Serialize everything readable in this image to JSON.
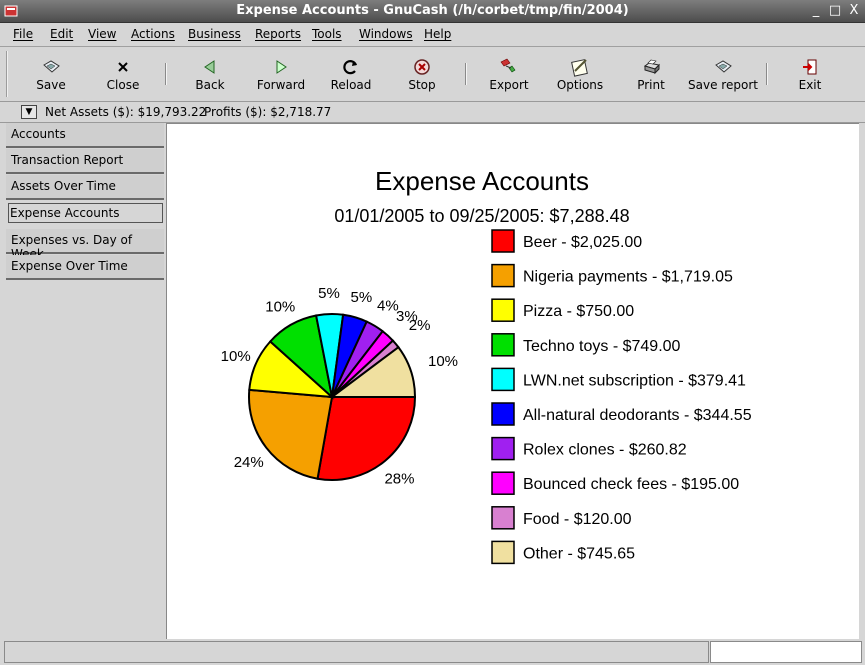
{
  "window": {
    "title": "Expense Accounts - GnuCash (/h/corbet/tmp/fin/2004)",
    "buttons": {
      "minimize": "_",
      "maximize": "□",
      "close": "X"
    }
  },
  "menu": [
    "File",
    "Edit",
    "View",
    "Actions",
    "Business",
    "Reports",
    "Tools",
    "Windows",
    "Help"
  ],
  "toolbar": {
    "save": "Save",
    "close": "Close",
    "back": "Back",
    "forward": "Forward",
    "reload": "Reload",
    "stop": "Stop",
    "export": "Export",
    "options": "Options",
    "print": "Print",
    "save_report": "Save report",
    "exit": "Exit"
  },
  "summary": {
    "net_assets": "Net Assets ($): $19,793.22",
    "profits": "Profits ($): $2,718.77"
  },
  "tabs": [
    "Accounts",
    "Transaction Report",
    "Assets Over Time",
    "Expense Accounts",
    "Expenses vs. Day of Week",
    "Expense Over Time"
  ],
  "active_tab": "Expense Accounts",
  "chart_data": {
    "type": "pie",
    "title": "Expense Accounts",
    "subtitle": "01/01/2005 to 09/25/2005: $7,288.48",
    "legend_position": "right",
    "slices": [
      {
        "label": "Beer - $2,025.00",
        "value": 2025.0,
        "percent_label": "28%",
        "color": "#ff0000"
      },
      {
        "label": "Nigeria payments - $1,719.05",
        "value": 1719.05,
        "percent_label": "24%",
        "color": "#f5a000"
      },
      {
        "label": "Pizza - $750.00",
        "value": 750.0,
        "percent_label": "10%",
        "color": "#ffff00"
      },
      {
        "label": "Techno toys - $749.00",
        "value": 749.0,
        "percent_label": "10%",
        "color": "#00e000"
      },
      {
        "label": "LWN.net subscription - $379.41",
        "value": 379.41,
        "percent_label": "5%",
        "color": "#00ffff"
      },
      {
        "label": "All-natural deodorants - $344.55",
        "value": 344.55,
        "percent_label": "5%",
        "color": "#0000ff"
      },
      {
        "label": "Rolex clones - $260.82",
        "value": 260.82,
        "percent_label": "4%",
        "color": "#a020f0"
      },
      {
        "label": "Bounced check fees - $195.00",
        "value": 195.0,
        "percent_label": "3%",
        "color": "#ff00ff"
      },
      {
        "label": "Food - $120.00",
        "value": 120.0,
        "percent_label": "2%",
        "color": "#d880d0"
      },
      {
        "label": "Other - $745.65",
        "value": 745.65,
        "percent_label": "10%",
        "color": "#f0e0a0"
      }
    ]
  }
}
